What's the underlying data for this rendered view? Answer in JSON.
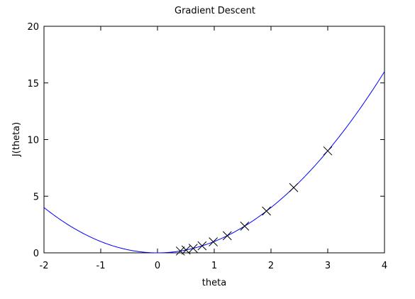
{
  "chart_data": {
    "type": "line",
    "title": "Gradient Descent",
    "xlabel": "theta",
    "ylabel": "J(theta)",
    "xlim": [
      -2,
      4
    ],
    "ylim": [
      0,
      20
    ],
    "xticks": [
      -2,
      -1,
      0,
      1,
      2,
      3,
      4
    ],
    "yticks": [
      0,
      5,
      10,
      15,
      20
    ],
    "grid": false,
    "curve": {
      "function": "J(theta) = theta^2",
      "x_range": [
        -2,
        4
      ],
      "color": "#0000ff"
    },
    "steps": {
      "marker": "x",
      "color": "#000000",
      "x": [
        3.0,
        2.4,
        1.92,
        1.536,
        1.229,
        0.983,
        0.786,
        0.629,
        0.503,
        0.403
      ],
      "y": [
        9.0,
        5.76,
        3.69,
        2.36,
        1.51,
        0.97,
        0.62,
        0.4,
        0.25,
        0.16
      ]
    }
  }
}
